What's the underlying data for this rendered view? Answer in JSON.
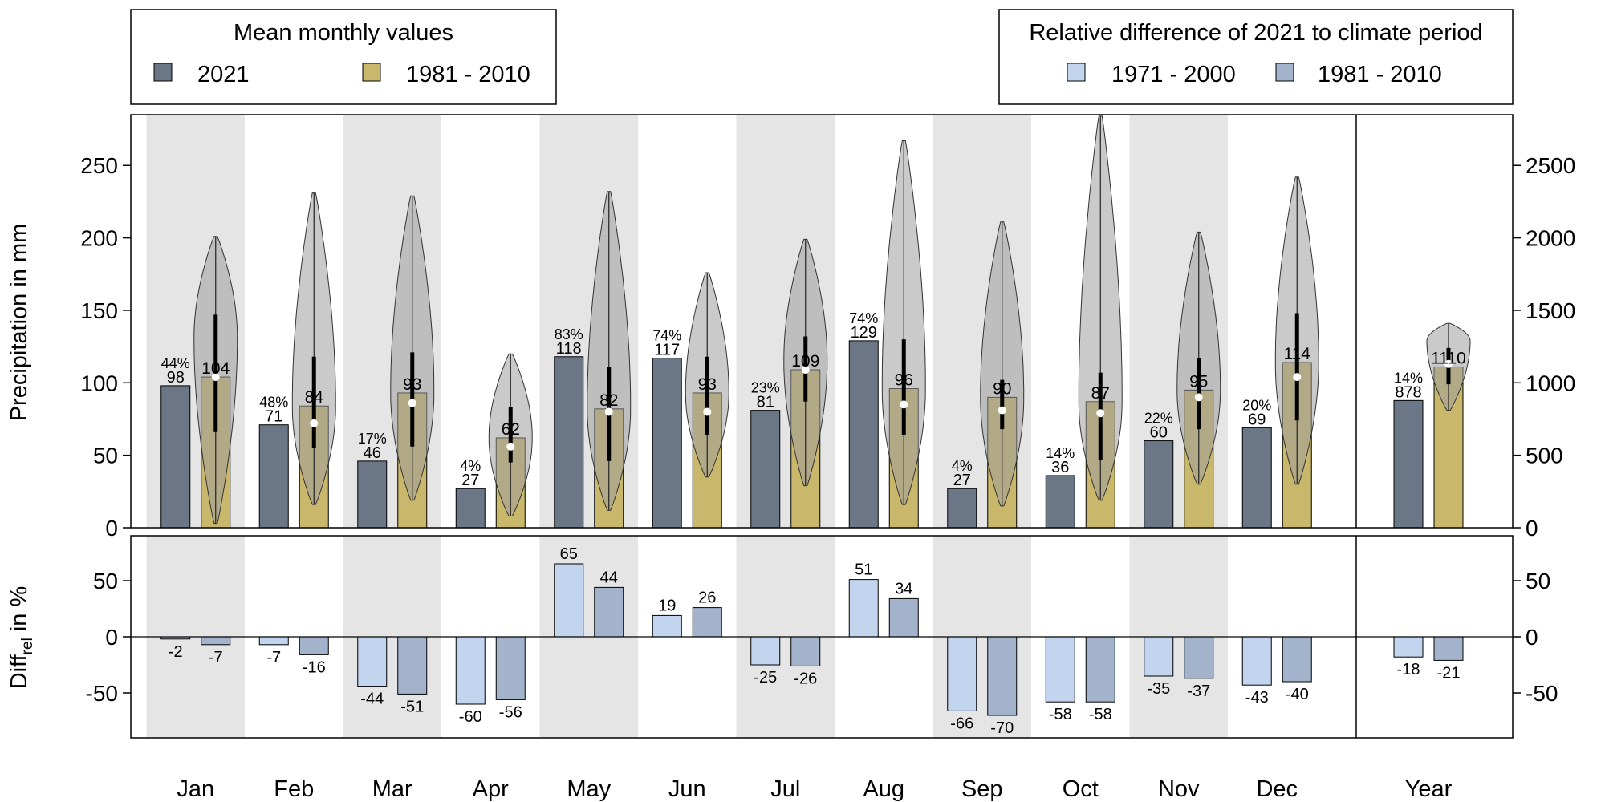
{
  "legend_left": {
    "title": "Mean monthly values",
    "items": [
      {
        "label": "2021",
        "color": "#6b7787"
      },
      {
        "label": "1981 - 2010",
        "color": "#c9b86b"
      }
    ]
  },
  "legend_right": {
    "title": "Relative difference of 2021 to climate period",
    "items": [
      {
        "label": "1971 - 2000",
        "color": "#c2d4ee"
      },
      {
        "label": "1981 - 2010",
        "color": "#a3b3cc"
      }
    ]
  },
  "colors": {
    "bar_2021": "#6b7787",
    "bar_clim": "#c9b86b",
    "diff_7100": "#c2d4ee",
    "diff_8110": "#a3b3cc",
    "month_shade": "#e5e5e5",
    "violin": "#9e9e9e"
  },
  "chart_data": [
    {
      "type": "bar",
      "panel": "precipitation",
      "ylabel": "Precipitation in mm",
      "ylim": [
        0,
        285
      ],
      "yticks": [
        0,
        50,
        100,
        150,
        200,
        250
      ],
      "ylim_right": [
        0,
        2850
      ],
      "yticks_right": [
        0,
        500,
        1000,
        1500,
        2000,
        2500
      ],
      "categories": [
        "Jan",
        "Feb",
        "Mar",
        "Apr",
        "May",
        "Jun",
        "Jul",
        "Aug",
        "Sep",
        "Oct",
        "Nov",
        "Dec"
      ],
      "year_label": "Year",
      "series": [
        {
          "name": "2021",
          "values": [
            98,
            71,
            46,
            27,
            118,
            117,
            81,
            129,
            27,
            36,
            60,
            69
          ]
        },
        {
          "name": "1981 - 2010",
          "values": [
            104,
            84,
            93,
            62,
            82,
            93,
            109,
            96,
            90,
            87,
            95,
            114
          ]
        }
      ],
      "percent_labels": [
        "44%",
        "48%",
        "17%",
        "4%",
        "83%",
        "74%",
        "23%",
        "74%",
        "4%",
        "14%",
        "22%",
        "20%"
      ],
      "clim_bar_base": [
        3,
        16,
        19,
        8,
        12,
        35,
        29,
        16,
        15,
        19,
        30,
        30
      ],
      "year_values": {
        "2021": 878,
        "1981 - 2010": 1110,
        "percent": "14%",
        "clim_base": 810
      },
      "violins": [
        {
          "min": 3,
          "max": 201,
          "q1": 66,
          "q3": 147,
          "median": 104,
          "bulge": 131
        },
        {
          "min": 16,
          "max": 231,
          "q1": 55,
          "q3": 118,
          "median": 72,
          "bulge": 84
        },
        {
          "min": 19,
          "max": 229,
          "q1": 56,
          "q3": 121,
          "median": 86,
          "bulge": 93
        },
        {
          "min": 8,
          "max": 120,
          "q1": 45,
          "q3": 83,
          "median": 56,
          "bulge": 62
        },
        {
          "min": 12,
          "max": 232,
          "q1": 46,
          "q3": 111,
          "median": 80,
          "bulge": 82
        },
        {
          "min": 35,
          "max": 176,
          "q1": 64,
          "q3": 118,
          "median": 80,
          "bulge": 93
        },
        {
          "min": 29,
          "max": 199,
          "q1": 87,
          "q3": 132,
          "median": 109,
          "bulge": 115
        },
        {
          "min": 16,
          "max": 267,
          "q1": 64,
          "q3": 130,
          "median": 85,
          "bulge": 96
        },
        {
          "min": 15,
          "max": 211,
          "q1": 68,
          "q3": 102,
          "median": 81,
          "bulge": 90
        },
        {
          "min": 19,
          "max": 284,
          "q1": 47,
          "q3": 107,
          "median": 79,
          "bulge": 87
        },
        {
          "min": 30,
          "max": 204,
          "q1": 68,
          "q3": 117,
          "median": 90,
          "bulge": 95
        },
        {
          "min": 30,
          "max": 242,
          "q1": 74,
          "q3": 148,
          "median": 104,
          "bulge": 114
        }
      ],
      "year_violin": {
        "min": 810,
        "max": 1410,
        "q1": 990,
        "q3": 1240,
        "median": 1130,
        "bulge": 1290
      }
    },
    {
      "type": "bar",
      "panel": "difference",
      "ylabel_main": "Diff",
      "ylabel_sub": "rel",
      "ylabel_tail": " in %",
      "ylim": [
        -90,
        90
      ],
      "yticks": [
        -50,
        0,
        50
      ],
      "categories": [
        "Jan",
        "Feb",
        "Mar",
        "Apr",
        "May",
        "Jun",
        "Jul",
        "Aug",
        "Sep",
        "Oct",
        "Nov",
        "Dec"
      ],
      "series": [
        {
          "name": "1971 - 2000",
          "values": [
            -2,
            -7,
            -44,
            -60,
            65,
            19,
            -25,
            51,
            -66,
            -58,
            -35,
            -43
          ]
        },
        {
          "name": "1981 - 2010",
          "values": [
            -7,
            -16,
            -51,
            -56,
            44,
            26,
            -26,
            34,
            -70,
            -58,
            -37,
            -40
          ]
        }
      ],
      "year_values": {
        "1971 - 2000": -18,
        "1981 - 2010": -21
      }
    }
  ]
}
